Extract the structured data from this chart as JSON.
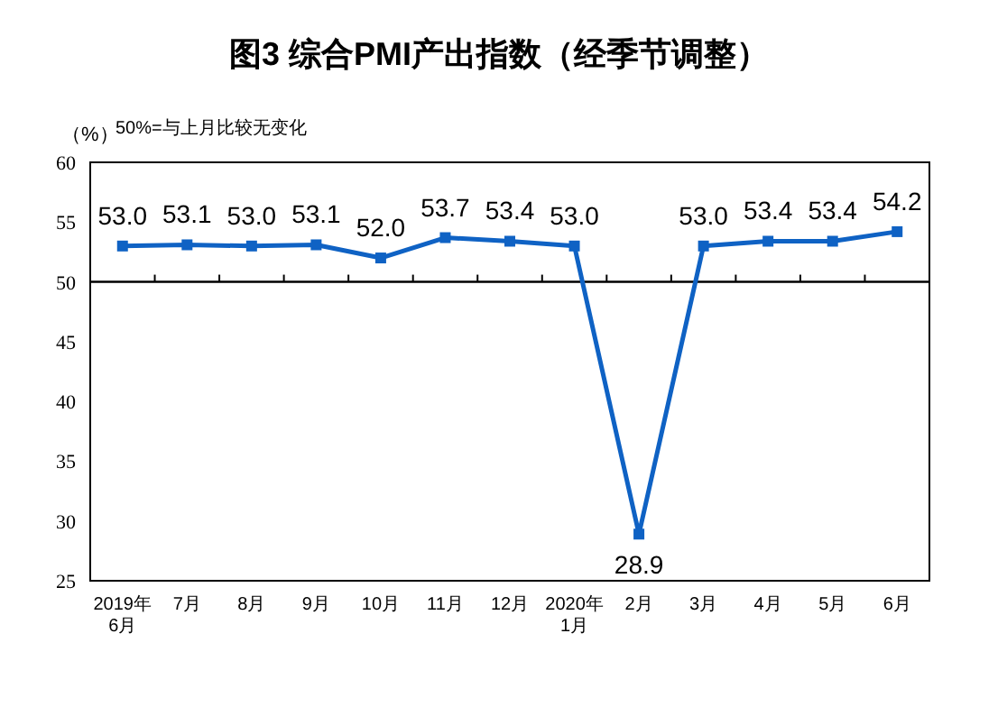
{
  "chart_data": {
    "type": "line",
    "title": "图3 综合PMI产出指数（经季节调整）",
    "ylabel": "（%）",
    "annotations": [
      "50%=与上月比较无变化"
    ],
    "categories": [
      "2019年\n6月",
      "7月",
      "8月",
      "9月",
      "10月",
      "11月",
      "12月",
      "2020年\n1月",
      "2月",
      "3月",
      "4月",
      "5月",
      "6月"
    ],
    "series": [
      {
        "color": "#0f62c4",
        "values": [
          53.0,
          53.1,
          53.0,
          53.1,
          52.0,
          53.7,
          53.4,
          53.0,
          28.9,
          53.0,
          53.4,
          53.4,
          54.2
        ],
        "value_labels": [
          "53.0",
          "53.1",
          "53.0",
          "53.1",
          "52.0",
          "53.7",
          "53.4",
          "53.0",
          "28.9",
          "53.0",
          "53.4",
          "53.4",
          "54.2"
        ]
      }
    ],
    "ylim": [
      25,
      60
    ],
    "yticks": [
      25,
      30,
      35,
      40,
      45,
      50,
      55,
      60
    ],
    "grid": false,
    "marker": "square",
    "line_style": "solid",
    "ref_lines": [
      {
        "axis": "y",
        "value": 50,
        "color": "#000000"
      }
    ]
  }
}
